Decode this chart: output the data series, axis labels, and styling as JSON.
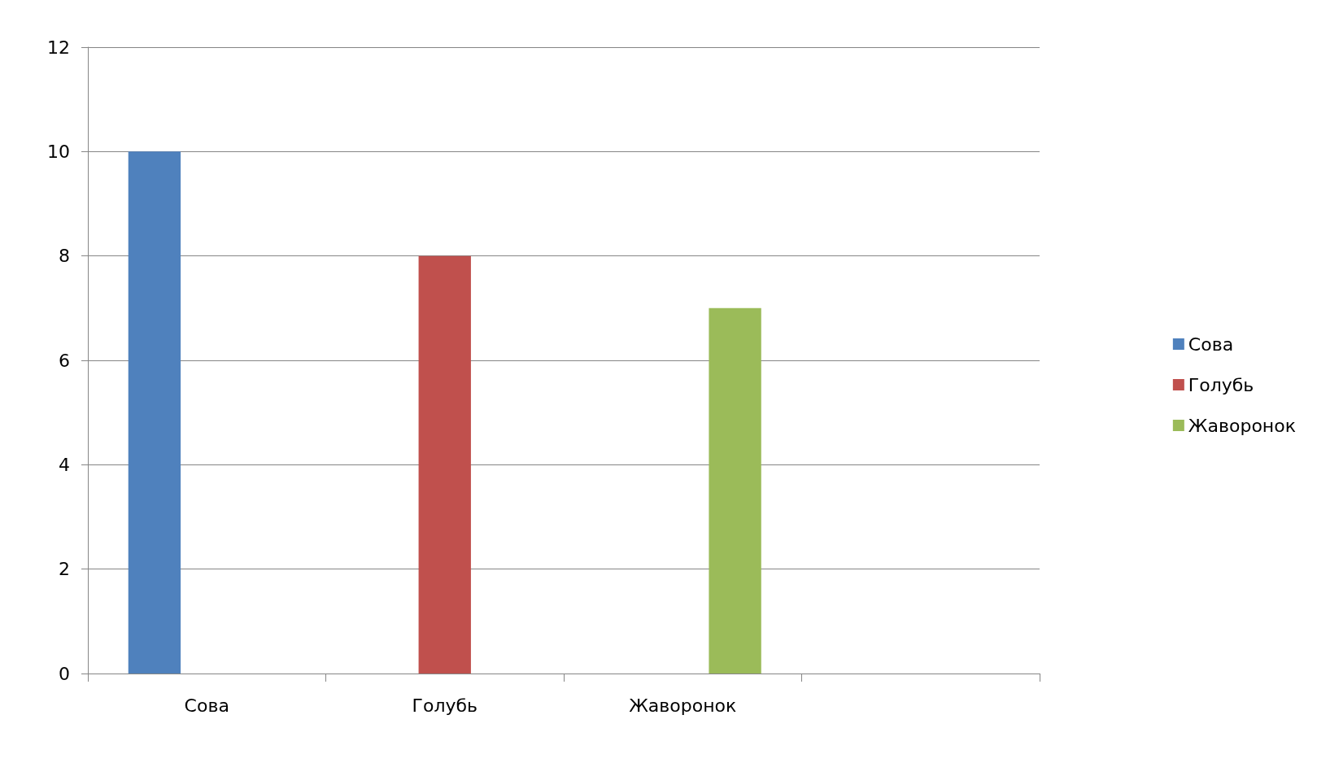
{
  "chart_data": {
    "type": "bar",
    "categories": [
      "Сова",
      "Голубь",
      "Жаворонок",
      null
    ],
    "series": [
      {
        "name": "Сова",
        "color": "#4f81bd",
        "values": [
          10,
          null,
          null,
          null
        ]
      },
      {
        "name": "Голубь",
        "color": "#c0504d",
        "values": [
          null,
          8,
          null,
          null
        ]
      },
      {
        "name": "Жаворонок",
        "color": "#9bbb59",
        "values": [
          null,
          null,
          7,
          null
        ]
      }
    ],
    "ylim": [
      0,
      12
    ],
    "yticks": [
      0,
      2,
      4,
      6,
      8,
      10,
      12
    ],
    "grid": "y",
    "legend": "right"
  }
}
